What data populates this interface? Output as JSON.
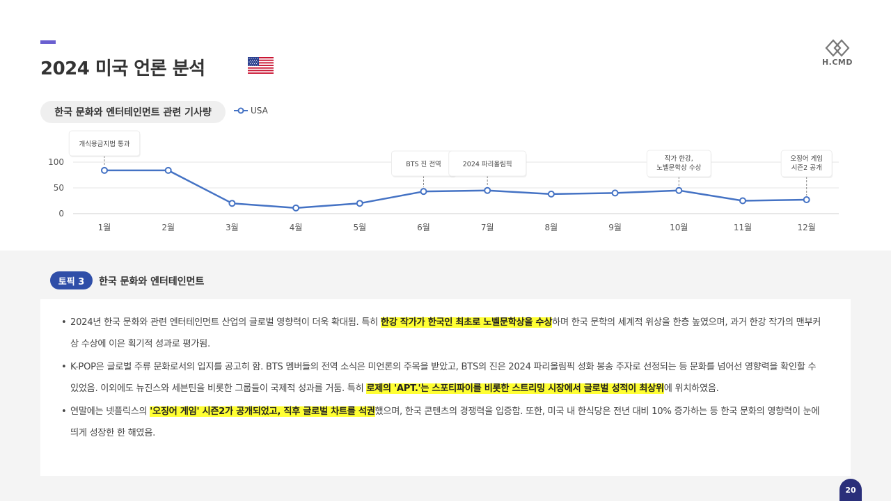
{
  "page": {
    "title": "2024 미국 언론 분석",
    "logo_text": "H.CMD",
    "page_number": "20",
    "flag_icon": "us-flag-icon"
  },
  "chart_section": {
    "pill_label": "한국 문화와 엔터테인먼트 관련 기사량"
  },
  "chart_data": {
    "type": "line",
    "categories": [
      "1월",
      "2월",
      "3월",
      "4월",
      "5월",
      "6월",
      "7월",
      "8월",
      "9월",
      "10월",
      "11월",
      "12월"
    ],
    "series": [
      {
        "name": "USA",
        "values": [
          84,
          84,
          20,
          11,
          20,
          43,
          45,
          38,
          40,
          45,
          25,
          27
        ],
        "color": "#4472c4"
      }
    ],
    "y_ticks": [
      0,
      50,
      100
    ],
    "ylim": [
      0,
      100
    ],
    "grid": true,
    "legend_position": "top",
    "annotations": [
      {
        "category_index": 0,
        "lines": [
          "개식용금지법 통과"
        ]
      },
      {
        "category_index": 5,
        "lines": [
          "BTS 진 전역"
        ]
      },
      {
        "category_index": 6,
        "lines": [
          "2024 파리올림픽"
        ]
      },
      {
        "category_index": 9,
        "lines": [
          "작가 한강,",
          "노벨문학상 수상"
        ]
      },
      {
        "category_index": 11,
        "lines": [
          "오징어 게임",
          "시즌2 공개"
        ]
      }
    ]
  },
  "topic": {
    "badge": "토픽 3",
    "title": "한국 문화와 엔터테인먼트"
  },
  "bullets": [
    {
      "pre": "2024년 한국 문화와 관련 엔터테인먼트 산업의 글로벌 영향력이 더욱 확대됨. 특히 ",
      "highlight": "한강 작가가 한국인 최초로 노벨문학상을 수상",
      "post": "하며 한국 문학의 세계적 위상을 한층 높였으며, 과거 한강 작가의 맨부커상 수상에 이은 획기적 성과로 평가됨."
    },
    {
      "pre": "K-POP은 글로벌 주류 문화로서의 입지를 공고히 함. BTS 멤버들의 전역 소식은 미언론의 주목을 받았고, BTS의 진은 2024 파리올림픽 성화 봉송 주자로 선정되는 등 문화를 넘어선 영향력을 확인할 수 있었음. 이외에도 뉴진스와 세븐틴을 비롯한 그룹들이 국제적 성과를 거둠. 특히 ",
      "highlight": "로제의 'APT.'는 스포티파이를 비롯한 스트리밍 시장에서 글로벌 성적이 최상위",
      "post": "에 위치하였음."
    },
    {
      "pre": "연말에는 넷플릭스의 ",
      "highlight": "'오징어 게임' 시즌2가 공개되었고, 직후 글로벌 차트를 석권",
      "post": "했으며, 한국 콘텐츠의 경쟁력을 입증함. 또한, 미국 내 한식당은 전년 대비 10% 증가하는 등 한국 문화의 영향력이 눈에 띄게 성장한 한 해였음."
    }
  ]
}
